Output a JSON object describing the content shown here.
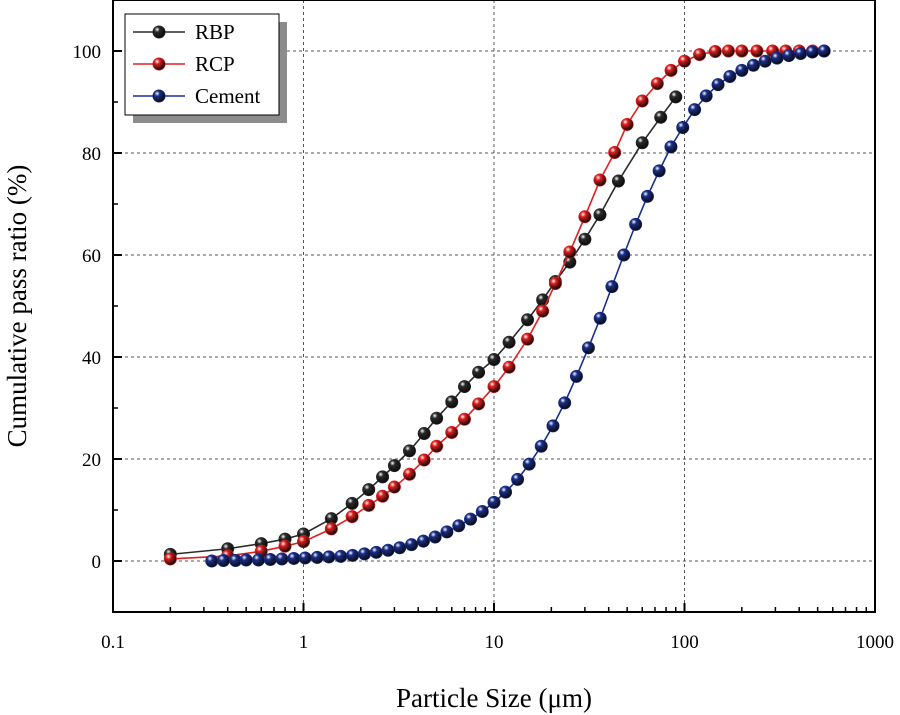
{
  "chart_data": {
    "type": "line",
    "x_scale": "log",
    "xlabel": "Particle Size (μm)",
    "ylabel": "Cumulative pass ratio (%)",
    "xlim": [
      0.1,
      1000
    ],
    "ylim": [
      -10,
      110
    ],
    "x_ticks": [
      0.1,
      1,
      10,
      100,
      1000
    ],
    "x_tick_labels": [
      "0.1",
      "1",
      "10",
      "100",
      "1000"
    ],
    "y_ticks": [
      0,
      20,
      40,
      60,
      80,
      100
    ],
    "y_tick_labels": [
      "0",
      "20",
      "40",
      "60",
      "80",
      "100"
    ],
    "grid": true,
    "legend_position": "top-left",
    "series": [
      {
        "name": "RBP",
        "color": "#2b2b2b",
        "x": [
          0.2,
          0.4,
          0.6,
          0.8,
          1.0,
          1.4,
          1.8,
          2.2,
          2.6,
          3.0,
          3.6,
          4.3,
          5.0,
          6.0,
          7.0,
          8.3,
          10.0,
          12.0,
          15.0,
          18.0,
          21.0,
          25.0,
          30.0,
          36.0,
          45.0,
          60.0,
          75.0,
          90.0
        ],
        "y": [
          1.3,
          2.4,
          3.4,
          4.3,
          5.3,
          8.3,
          11.3,
          14.0,
          16.5,
          18.7,
          21.6,
          25.0,
          28.0,
          31.2,
          34.2,
          37.0,
          39.5,
          42.9,
          47.3,
          51.2,
          54.8,
          58.6,
          63.1,
          67.9,
          74.5,
          82.0,
          87.0,
          91.0
        ]
      },
      {
        "name": "RCP",
        "color": "#e02020",
        "x": [
          0.2,
          0.4,
          0.6,
          0.8,
          1.0,
          1.4,
          1.8,
          2.2,
          2.6,
          3.0,
          3.6,
          4.3,
          5.0,
          6.0,
          7.0,
          8.3,
          10.0,
          12.0,
          15.0,
          18.0,
          21.0,
          25.0,
          30.0,
          36.0,
          43.0,
          50.0,
          60.0,
          72.0,
          85.0,
          100.0,
          120.0,
          145.0,
          170.0,
          200.0,
          240.0,
          290.0,
          340.0,
          400.0,
          470.0,
          540.0
        ],
        "y": [
          0.4,
          1.0,
          1.9,
          2.9,
          3.8,
          6.3,
          8.7,
          10.9,
          12.7,
          14.5,
          17.0,
          19.8,
          22.5,
          25.2,
          27.8,
          30.8,
          34.2,
          38.0,
          43.5,
          49.0,
          54.4,
          60.6,
          67.5,
          74.7,
          80.1,
          85.6,
          90.2,
          93.6,
          96.2,
          98.0,
          99.3,
          99.9,
          100.0,
          100.0,
          100.0,
          100.0,
          100.0,
          100.0,
          100.0,
          100.0
        ]
      },
      {
        "name": "Cement",
        "color": "#1a2f8c",
        "x": [
          0.33,
          0.38,
          0.44,
          0.5,
          0.58,
          0.67,
          0.77,
          0.89,
          1.02,
          1.18,
          1.36,
          1.57,
          1.81,
          2.09,
          2.41,
          2.78,
          3.2,
          3.69,
          4.26,
          4.91,
          5.66,
          6.53,
          7.53,
          8.68,
          10.0,
          11.5,
          13.3,
          15.3,
          17.7,
          20.4,
          23.5,
          27.1,
          31.3,
          36.1,
          41.6,
          48.0,
          55.4,
          63.9,
          73.6,
          84.9,
          97.9,
          113.0,
          130.0,
          150.0,
          173.0,
          200.0,
          230.0,
          265.0,
          306.0,
          353.0,
          407.0,
          469.0,
          541.0
        ],
        "y": [
          0.0,
          0.1,
          0.1,
          0.2,
          0.2,
          0.3,
          0.4,
          0.5,
          0.6,
          0.7,
          0.8,
          0.9,
          1.1,
          1.4,
          1.7,
          2.1,
          2.6,
          3.2,
          3.9,
          4.7,
          5.7,
          6.9,
          8.2,
          9.7,
          11.5,
          13.5,
          16.0,
          19.0,
          22.5,
          26.5,
          31.0,
          36.2,
          41.8,
          47.6,
          53.8,
          60.0,
          66.0,
          71.5,
          76.5,
          81.2,
          85.0,
          88.5,
          91.2,
          93.4,
          95.0,
          96.2,
          97.2,
          98.0,
          98.6,
          99.1,
          99.5,
          99.8,
          100.0
        ]
      }
    ]
  }
}
